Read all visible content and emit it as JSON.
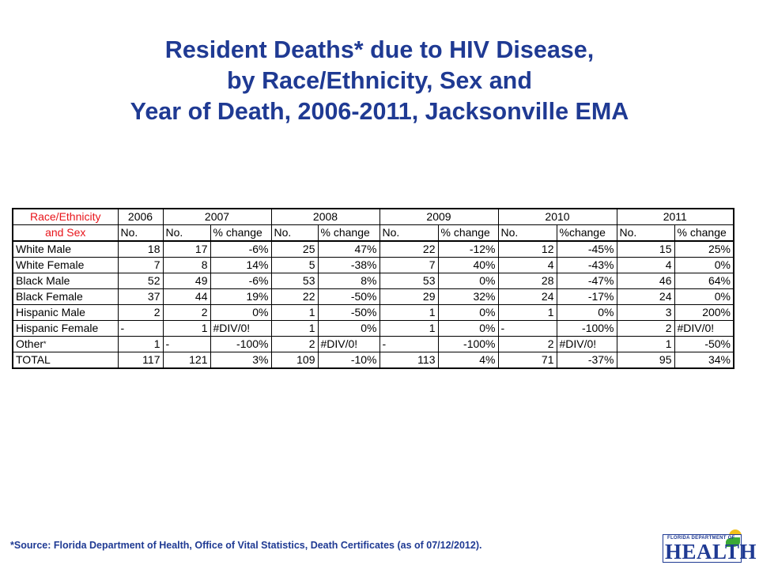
{
  "title": {
    "line1": "Resident Deaths* due to HIV Disease,",
    "line2": "by Race/Ethnicity, Sex and",
    "line3": "Year of Death, 2006-2011, Jacksonville EMA"
  },
  "table": {
    "header1": {
      "label": "Race/Ethnicity",
      "years": [
        "2006",
        "2007",
        "2008",
        "2009",
        "2010",
        "2011"
      ]
    },
    "header2": {
      "label": "and Sex",
      "cols": [
        "No.",
        "No.",
        "% change",
        "No.",
        "% change",
        "No.",
        "% change",
        "No.",
        "%change",
        "No.",
        "% change"
      ]
    },
    "rows": [
      {
        "label": "White Male",
        "cells": [
          "18",
          "17",
          "-6%",
          "25",
          "47%",
          "22",
          "-12%",
          "12",
          "-45%",
          "15",
          "25%"
        ]
      },
      {
        "label": "White Female",
        "cells": [
          "7",
          "8",
          "14%",
          "5",
          "-38%",
          "7",
          "40%",
          "4",
          "-43%",
          "4",
          "0%"
        ]
      },
      {
        "label": "Black Male",
        "cells": [
          "52",
          "49",
          "-6%",
          "53",
          "8%",
          "53",
          "0%",
          "28",
          "-47%",
          "46",
          "64%"
        ]
      },
      {
        "label": "Black Female",
        "cells": [
          "37",
          "44",
          "19%",
          "22",
          "-50%",
          "29",
          "32%",
          "24",
          "-17%",
          "24",
          "0%"
        ]
      },
      {
        "label": "Hispanic Male",
        "cells": [
          "2",
          "2",
          "0%",
          "1",
          "-50%",
          "1",
          "0%",
          "1",
          "0%",
          "3",
          "200%"
        ]
      },
      {
        "label": "Hispanic Female",
        "cells": [
          "-",
          "1",
          "#DIV/0!",
          "1",
          "0%",
          "1",
          "0%",
          "-",
          "-100%",
          "2",
          "#DIV/0!"
        ]
      },
      {
        "label": "Other",
        "asterisk": "*",
        "cells": [
          "1",
          "-",
          "-100%",
          "2",
          "#DIV/0!",
          "-",
          "-100%",
          "2",
          "#DIV/0!",
          "1",
          "-50%"
        ]
      },
      {
        "label": "TOTAL",
        "cells": [
          "117",
          "121",
          "3%",
          "109",
          "-10%",
          "113",
          "4%",
          "71",
          "-37%",
          "95",
          "34%"
        ]
      }
    ]
  },
  "source": "*Source:  Florida Department of Health, Office of Vital Statistics, Death Certificates (as of 07/12/2012).",
  "logo": {
    "small_text": "FLORIDA DEPARTMENT OF",
    "big_text": "HEALTH"
  },
  "colors": {
    "title": "#1f3a93",
    "header_red": "#e8141a"
  }
}
